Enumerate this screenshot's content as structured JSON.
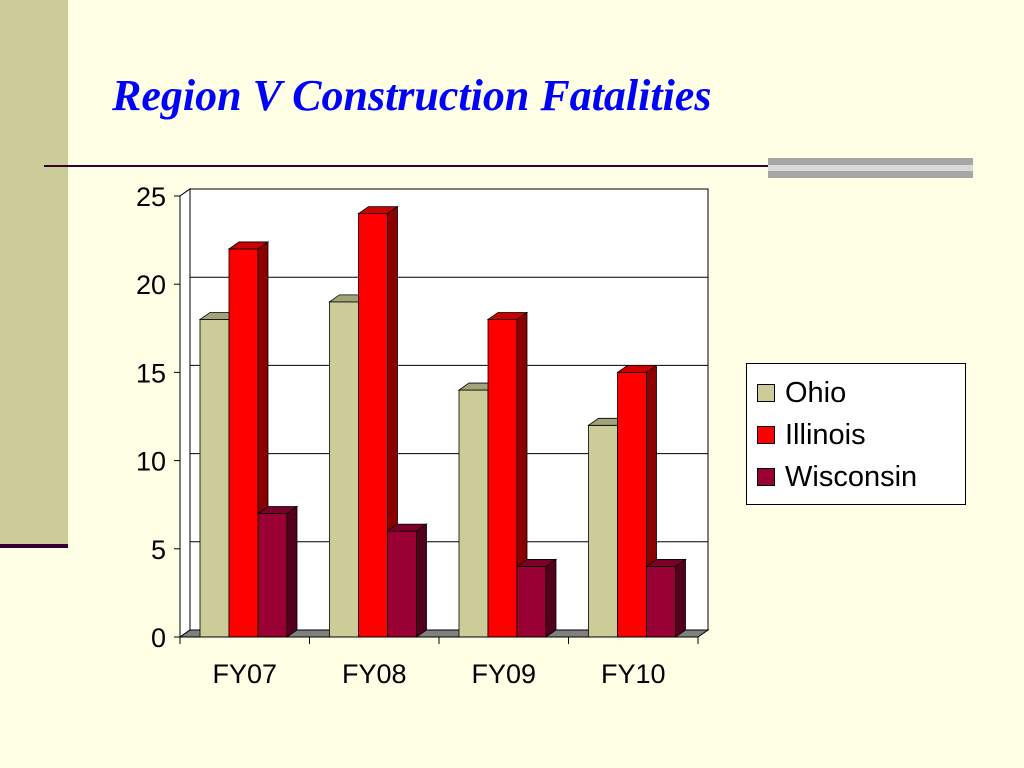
{
  "slide": {
    "title": "Region V Construction Fatalities"
  },
  "chart_data": {
    "type": "bar",
    "categories": [
      "FY07",
      "FY08",
      "FY09",
      "FY10"
    ],
    "series": [
      {
        "name": "Ohio",
        "values": [
          18,
          19,
          14,
          12
        ],
        "color": "#CCCC99"
      },
      {
        "name": "Illinois",
        "values": [
          22,
          24,
          18,
          15
        ],
        "color": "#FF0000"
      },
      {
        "name": "Wisconsin",
        "values": [
          7,
          6,
          4,
          4
        ],
        "color": "#990033"
      }
    ],
    "ylim": [
      0,
      25
    ],
    "yticks": [
      0,
      5,
      10,
      15,
      20,
      25
    ],
    "grid": true,
    "legend_position": "right",
    "style": "3d-clustered-column"
  }
}
